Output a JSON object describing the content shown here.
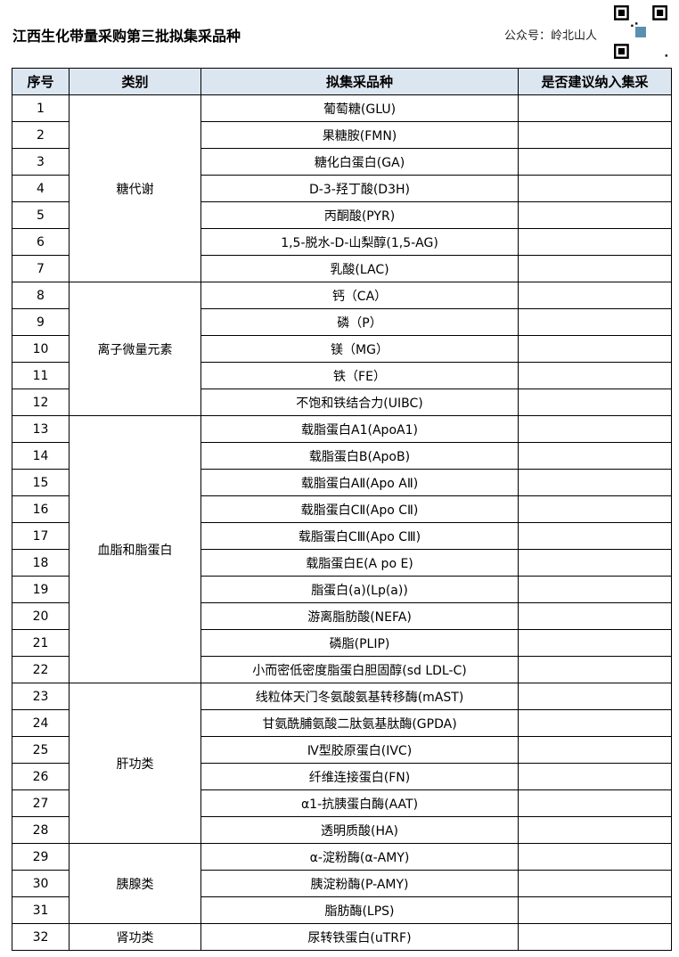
{
  "title": "江西生化带量采购第三批拟集采品种",
  "account": "公众号：岭北山人",
  "qr_icon": "qr-code-icon",
  "header_bg": "#dce6f1",
  "headers": [
    "序号",
    "类别",
    "拟集采品种",
    "是否建议纳入集采"
  ],
  "groups": [
    {
      "category": "糖代谢",
      "items": [
        [
          "1",
          "葡萄糖(GLU)"
        ],
        [
          "2",
          "果糖胺(FMN)"
        ],
        [
          "3",
          "糖化白蛋白(GA)"
        ],
        [
          "4",
          "D-3-羟丁酸(D3H)"
        ],
        [
          "5",
          "丙酮酸(PYR)"
        ],
        [
          "6",
          "1,5-脱水-D-山梨醇(1,5-AG)"
        ],
        [
          "7",
          "乳酸(LAC)"
        ]
      ]
    },
    {
      "category": "离子微量元素",
      "items": [
        [
          "8",
          "钙（CA）"
        ],
        [
          "9",
          "磷（P）"
        ],
        [
          "10",
          "镁（MG）"
        ],
        [
          "11",
          "铁（FE）"
        ],
        [
          "12",
          "不饱和铁结合力(UIBC)"
        ]
      ]
    },
    {
      "category": "血脂和脂蛋白",
      "items": [
        [
          "13",
          "载脂蛋白A1(ApoA1)"
        ],
        [
          "14",
          "载脂蛋白B(ApoB)"
        ],
        [
          "15",
          "载脂蛋白AⅡ(Apo AⅡ)"
        ],
        [
          "16",
          "载脂蛋白CⅡ(Apo CⅡ)"
        ],
        [
          "17",
          "载脂蛋白CⅢ(Apo CⅢ)"
        ],
        [
          "18",
          "载脂蛋白E(A po E)"
        ],
        [
          "19",
          "脂蛋白(a)(Lp(a))"
        ],
        [
          "20",
          "游离脂肪酸(NEFA)"
        ],
        [
          "21",
          "磷脂(PLIP)"
        ],
        [
          "22",
          "小而密低密度脂蛋白胆固醇(sd LDL-C)"
        ]
      ]
    },
    {
      "category": "肝功类",
      "items": [
        [
          "23",
          "线粒体天门冬氨酸氨基转移酶(mAST)"
        ],
        [
          "24",
          "甘氨酰脯氨酸二肽氨基肽酶(GPDA)"
        ],
        [
          "25",
          "Ⅳ型胶原蛋白(IVC)"
        ],
        [
          "26",
          "纤维连接蛋白(FN)"
        ],
        [
          "27",
          "α1-抗胰蛋白酶(AAT)"
        ],
        [
          "28",
          "透明质酸(HA)"
        ]
      ]
    },
    {
      "category": "胰腺类",
      "items": [
        [
          "29",
          "α-淀粉酶(α-AMY)"
        ],
        [
          "30",
          "胰淀粉酶(P-AMY)"
        ],
        [
          "31",
          "脂肪酶(LPS)"
        ]
      ]
    },
    {
      "category": "肾功类",
      "items": [
        [
          "32",
          "尿转铁蛋白(uTRF)"
        ]
      ]
    }
  ]
}
